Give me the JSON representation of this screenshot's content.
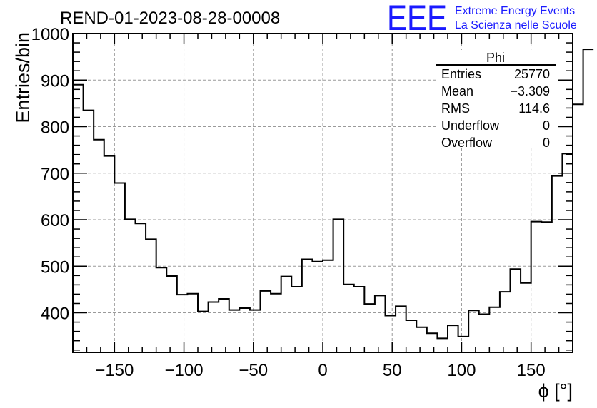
{
  "chart_data": {
    "type": "histogram",
    "title": "REND-01-2023-08-28-00008",
    "xlabel": "ϕ [°]",
    "ylabel": "Entries/bin",
    "xlim": [
      -180,
      180
    ],
    "ylim": [
      315,
      1000
    ],
    "x_ticks": [
      -150,
      -100,
      -50,
      0,
      50,
      100,
      150
    ],
    "x_tick_labels": [
      "−150",
      "−100",
      "−50",
      "0",
      "50",
      "100",
      "150"
    ],
    "y_ticks": [
      400,
      500,
      600,
      700,
      800,
      900,
      1000
    ],
    "grid": true,
    "bin_width": 7.5,
    "bin_start": -180,
    "values": [
      890,
      835,
      772,
      737,
      679,
      601,
      592,
      558,
      497,
      479,
      439,
      441,
      403,
      423,
      430,
      406,
      410,
      406,
      447,
      441,
      478,
      456,
      515,
      510,
      513,
      601,
      461,
      456,
      419,
      437,
      394,
      414,
      384,
      369,
      356,
      345,
      373,
      349,
      405,
      397,
      412,
      445,
      494,
      464,
      596,
      595,
      694,
      742,
      848,
      966
    ],
    "stats": {
      "name": "Phi",
      "rows": [
        {
          "label": "Entries",
          "value": "25770"
        },
        {
          "label": "Mean",
          "value": "−3.309"
        },
        {
          "label": "RMS",
          "value": "114.6"
        },
        {
          "label": "Underflow",
          "value": "0"
        },
        {
          "label": "Overflow",
          "value": "0"
        }
      ]
    }
  },
  "logo": {
    "mark": "EEE",
    "line1": "Extreme Energy Events",
    "line2": "La Scienza nelle Scuole",
    "color": "#1a1aff"
  }
}
